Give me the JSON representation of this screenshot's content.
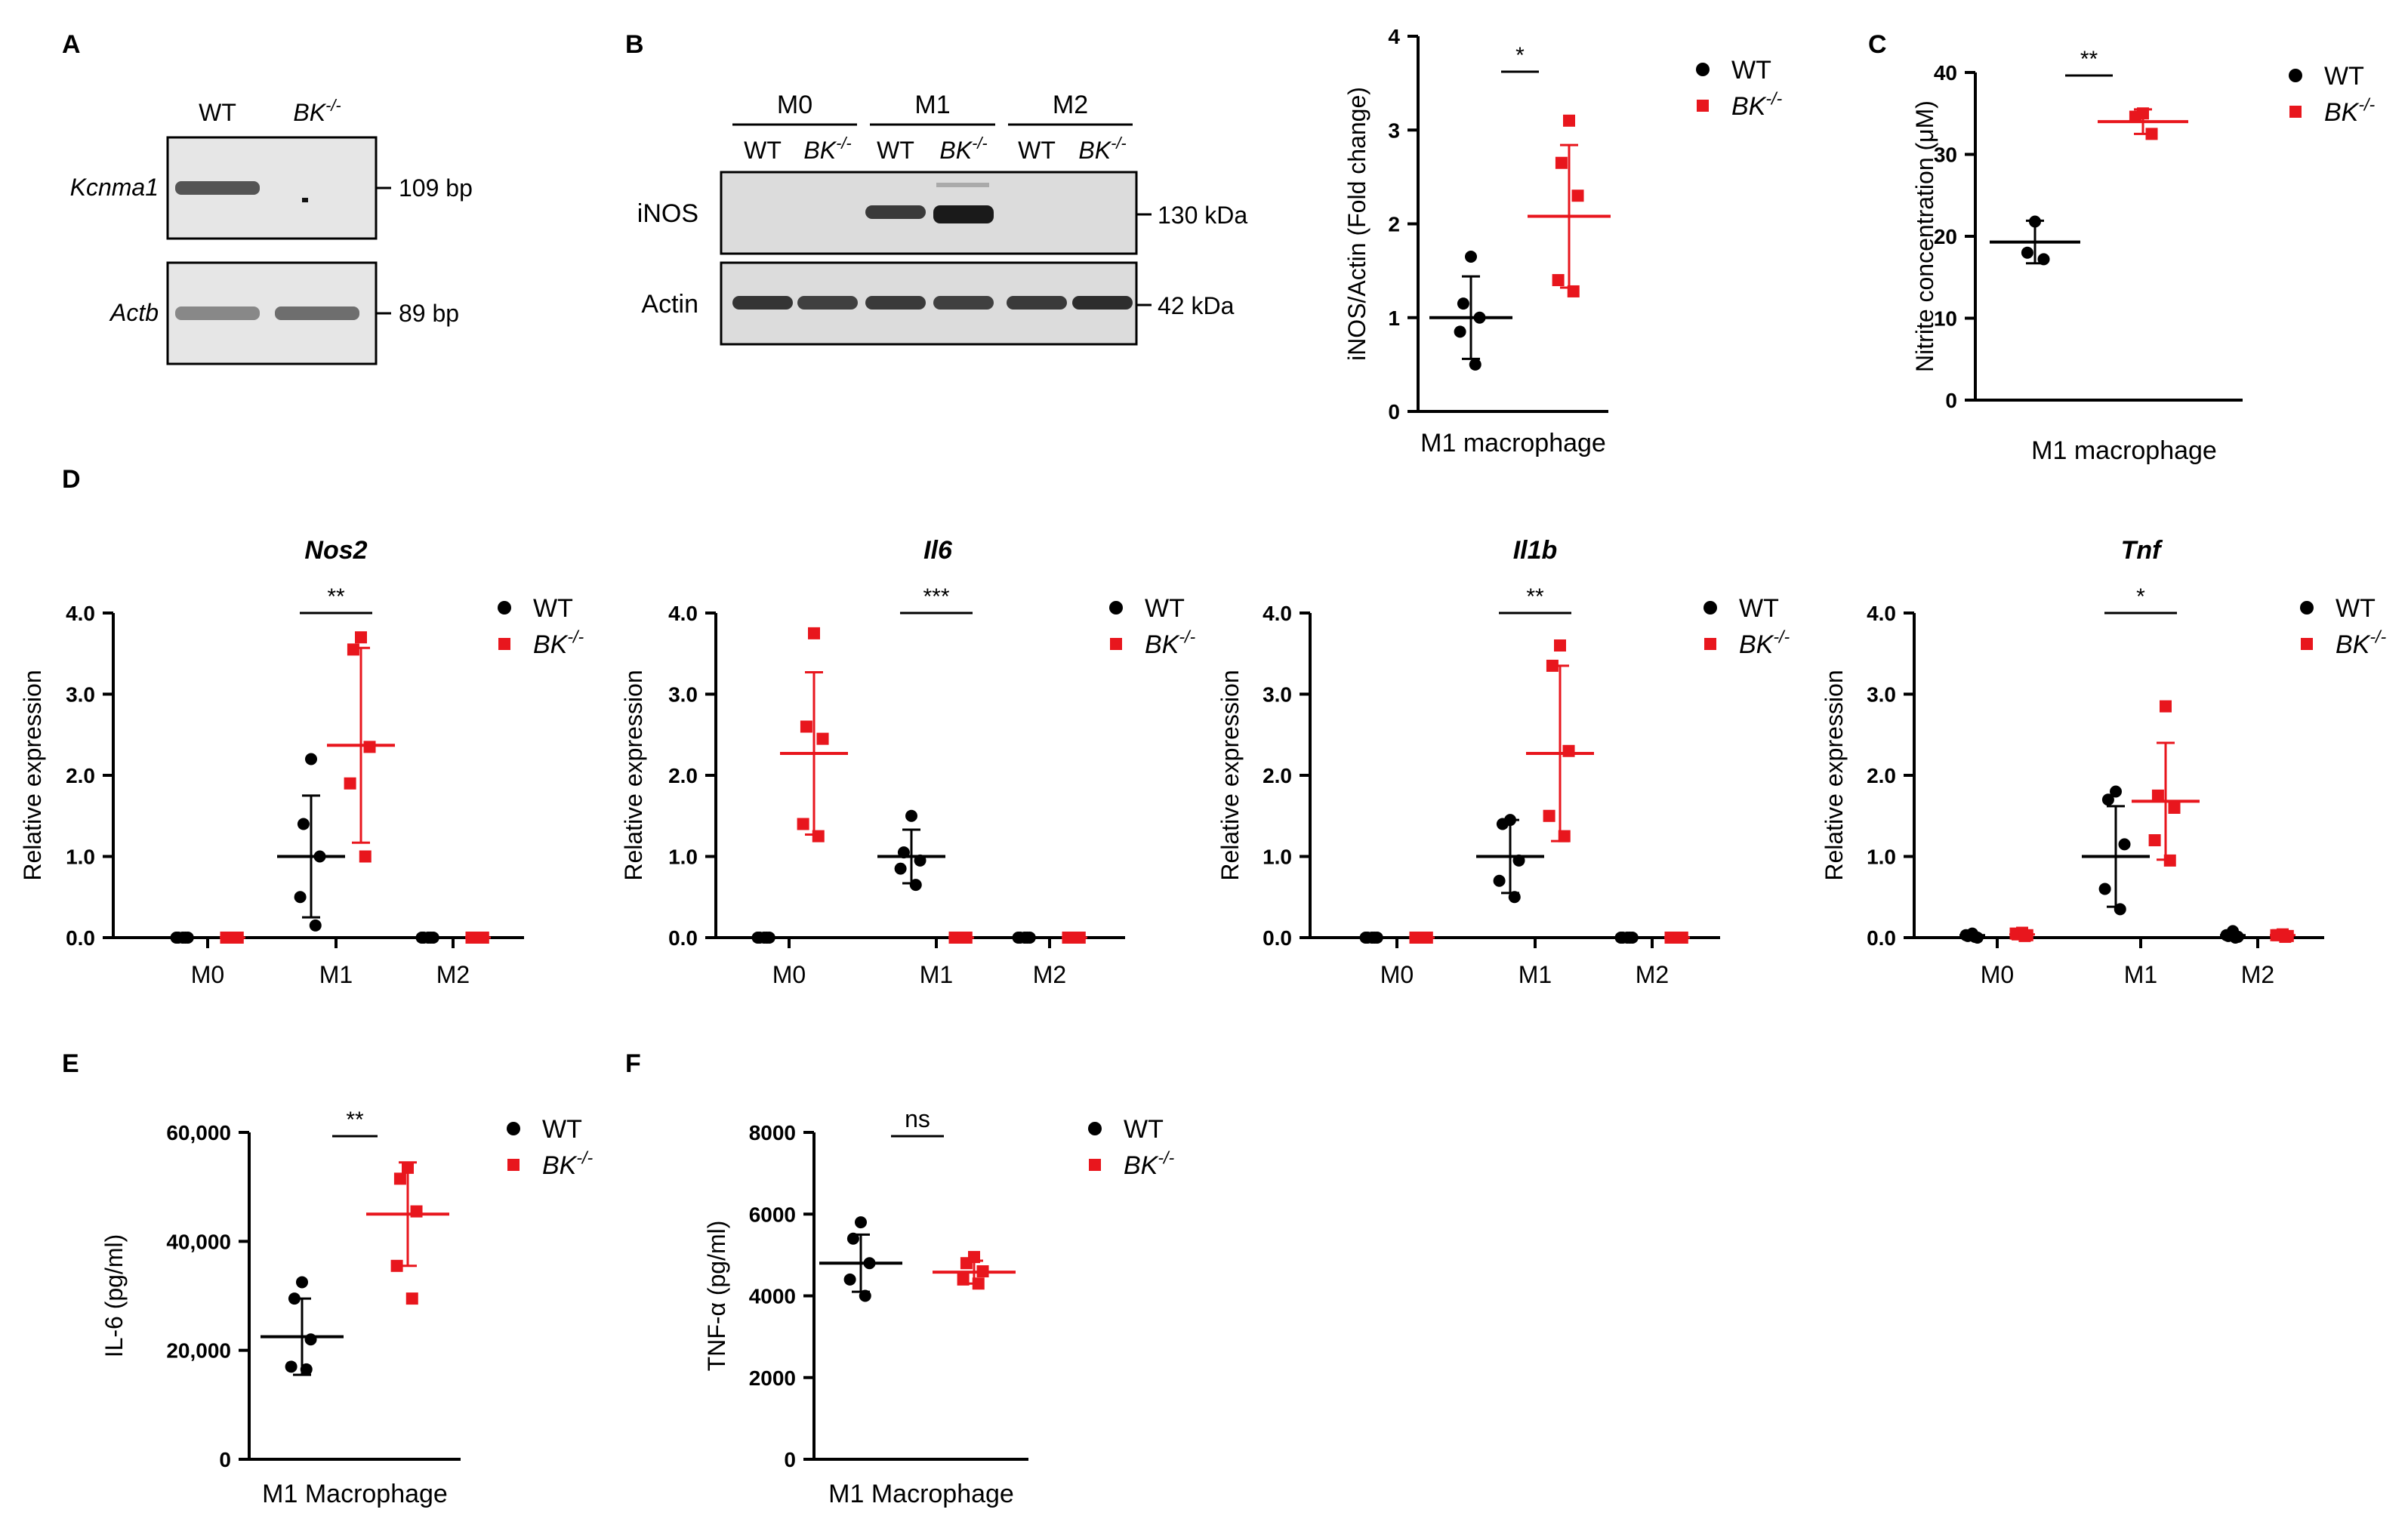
{
  "panel_labels": [
    "A",
    "B",
    "C",
    "D",
    "E",
    "F"
  ],
  "colors": {
    "wt": "#000000",
    "ko": "#e8161d",
    "gel_bg": "#e6e6e6",
    "blot_bg": "#dcdcdc"
  },
  "legend": {
    "wt": "WT",
    "ko_base": "BK",
    "ko_sup": "-/-"
  },
  "gel": {
    "lanes": [
      {
        "base": "WT",
        "sup": ""
      },
      {
        "base": "BK",
        "sup": "-/-"
      }
    ],
    "rows": [
      {
        "gene": "Kcnma1",
        "size": "109 bp",
        "bands": [
          {
            "lane": 0,
            "strength": 0.85
          }
        ]
      },
      {
        "gene": "Actb",
        "size": "89 bp",
        "bands": [
          {
            "lane": 0,
            "strength": 0.55
          },
          {
            "lane": 1,
            "strength": 0.7
          }
        ]
      }
    ]
  },
  "western": {
    "groups": [
      "M0",
      "M1",
      "M2"
    ],
    "lanes": [
      {
        "base": "WT",
        "sup": ""
      },
      {
        "base": "BK",
        "sup": "-/-"
      },
      {
        "base": "WT",
        "sup": ""
      },
      {
        "base": "BK",
        "sup": "-/-"
      },
      {
        "base": "WT",
        "sup": ""
      },
      {
        "base": "BK",
        "sup": "-/-"
      }
    ],
    "rows": [
      {
        "protein": "iNOS",
        "size": "130 kDa",
        "intensity": [
          0,
          0,
          0.75,
          1.0,
          0,
          0
        ]
      },
      {
        "protein": "Actin",
        "size": "42 kDa",
        "intensity": [
          0.8,
          0.7,
          0.75,
          0.7,
          0.75,
          0.85
        ]
      }
    ]
  },
  "chart_data": [
    {
      "id": "B-quant",
      "type": "scatter",
      "title": "",
      "xlabel": "M1 macrophage",
      "ylabel": "iNOS/Actin (Fold change)",
      "ylim": [
        0,
        4
      ],
      "yticks": [
        0,
        1,
        2,
        3,
        4
      ],
      "ytick_labels": [
        "0",
        "1",
        "2",
        "3",
        "4"
      ],
      "categories": [
        ""
      ],
      "series": [
        {
          "name": "WT",
          "groups": [
            {
              "mean": 1.0,
              "sd": 0.44,
              "points": [
                1.65,
                1.15,
                1.0,
                0.85,
                0.5
              ]
            }
          ]
        },
        {
          "name": "BK-/-",
          "groups": [
            {
              "mean": 2.08,
              "sd": 0.76,
              "points": [
                3.1,
                2.65,
                2.3,
                1.4,
                1.28
              ]
            }
          ]
        }
      ],
      "significance": [
        {
          "category": 0,
          "label": "*"
        }
      ]
    },
    {
      "id": "C",
      "type": "scatter",
      "title": "",
      "xlabel": "M1 macrophage",
      "ylabel": "Nitrite concentration (μM)",
      "ylim": [
        0,
        40
      ],
      "yticks": [
        0,
        10,
        20,
        30,
        40
      ],
      "ytick_labels": [
        "0",
        "10",
        "20",
        "30",
        "40"
      ],
      "categories": [
        ""
      ],
      "series": [
        {
          "name": "WT",
          "groups": [
            {
              "mean": 19.3,
              "sd": 2.6,
              "points": [
                21.8,
                18.0,
                17.2
              ]
            }
          ]
        },
        {
          "name": "BK-/-",
          "groups": [
            {
              "mean": 34.0,
              "sd": 1.5,
              "points": [
                35.0,
                34.6,
                32.5
              ]
            }
          ]
        }
      ],
      "significance": [
        {
          "category": 0,
          "label": "**"
        }
      ]
    },
    {
      "id": "D-Nos2",
      "type": "scatter",
      "title": "Nos2",
      "xlabel": "",
      "ylabel": "Relative expression",
      "ylim": [
        0,
        4
      ],
      "yticks": [
        0,
        1,
        2,
        3,
        4
      ],
      "ytick_labels": [
        "0.0",
        "1.0",
        "2.0",
        "3.0",
        "4.0"
      ],
      "categories": [
        "M0",
        "M1",
        "M2"
      ],
      "series": [
        {
          "name": "WT",
          "groups": [
            {
              "mean": 0.0,
              "sd": 0,
              "points": [
                0,
                0,
                0,
                0,
                0
              ]
            },
            {
              "mean": 1.0,
              "sd": 0.75,
              "points": [
                2.2,
                1.4,
                1.0,
                0.5,
                0.15
              ]
            },
            {
              "mean": 0.0,
              "sd": 0,
              "points": [
                0,
                0,
                0,
                0,
                0
              ]
            }
          ]
        },
        {
          "name": "BK-/-",
          "groups": [
            {
              "mean": 0.0,
              "sd": 0,
              "points": [
                0,
                0,
                0,
                0,
                0
              ]
            },
            {
              "mean": 2.37,
              "sd": 1.2,
              "points": [
                3.7,
                3.55,
                2.35,
                1.9,
                1.0
              ]
            },
            {
              "mean": 0.0,
              "sd": 0,
              "points": [
                0,
                0,
                0,
                0,
                0
              ]
            }
          ]
        }
      ],
      "significance": [
        {
          "category": 1,
          "label": "**"
        }
      ]
    },
    {
      "id": "D-Il6",
      "type": "scatter",
      "title": "Il6",
      "xlabel": "",
      "ylabel": "Relative expression",
      "ylim": [
        0,
        4
      ],
      "yticks": [
        0,
        1,
        2,
        3,
        4
      ],
      "ytick_labels": [
        "0.0",
        "1.0",
        "2.0",
        "3.0",
        "4.0"
      ],
      "categories": [
        "M0",
        "M1",
        "M2"
      ],
      "series": [
        {
          "name": "WT",
          "groups": [
            {
              "mean": 0.0,
              "sd": 0,
              "points": [
                0,
                0,
                0,
                0,
                0
              ]
            },
            {
              "mean": 1.0,
              "sd": 0.33,
              "points": [
                1.5,
                1.05,
                0.95,
                0.85,
                0.65
              ]
            },
            {
              "mean": 0.0,
              "sd": 0,
              "points": [
                0,
                0,
                0,
                0,
                0
              ]
            }
          ]
        },
        {
          "name": "BK-/-",
          "groups": [
            {
              "mean": 2.27,
              "sd": 1.0,
              "points": [
                3.75,
                2.6,
                2.45,
                1.4,
                1.25
              ]
            },
            {
              "mean": 0.0,
              "sd": 0,
              "points": [
                0,
                0,
                0,
                0,
                0
              ]
            },
            {
              "mean": 0.0,
              "sd": 0,
              "points": [
                0,
                0,
                0,
                0,
                0
              ]
            }
          ]
        }
      ],
      "significance": [
        {
          "category": 1,
          "label": "***"
        }
      ]
    },
    {
      "id": "D-Il1b",
      "type": "scatter",
      "title": "Il1b",
      "xlabel": "",
      "ylabel": "Relative expression",
      "ylim": [
        0,
        4
      ],
      "yticks": [
        0,
        1,
        2,
        3,
        4
      ],
      "ytick_labels": [
        "0.0",
        "1.0",
        "2.0",
        "3.0",
        "4.0"
      ],
      "categories": [
        "M0",
        "M1",
        "M2"
      ],
      "series": [
        {
          "name": "WT",
          "groups": [
            {
              "mean": 0.0,
              "sd": 0,
              "points": [
                0,
                0,
                0,
                0,
                0
              ]
            },
            {
              "mean": 1.0,
              "sd": 0.45,
              "points": [
                1.45,
                1.4,
                0.95,
                0.7,
                0.5
              ]
            },
            {
              "mean": 0.0,
              "sd": 0,
              "points": [
                0,
                0,
                0,
                0,
                0
              ]
            }
          ]
        },
        {
          "name": "BK-/-",
          "groups": [
            {
              "mean": 0.0,
              "sd": 0,
              "points": [
                0,
                0,
                0,
                0,
                0
              ]
            },
            {
              "mean": 2.27,
              "sd": 1.08,
              "points": [
                3.6,
                3.35,
                2.3,
                1.5,
                1.25
              ]
            },
            {
              "mean": 0.0,
              "sd": 0,
              "points": [
                0,
                0,
                0,
                0,
                0
              ]
            }
          ]
        }
      ],
      "significance": [
        {
          "category": 1,
          "label": "**"
        }
      ]
    },
    {
      "id": "D-Tnf",
      "type": "scatter",
      "title": "Tnf",
      "xlabel": "",
      "ylabel": "Relative expression",
      "ylim": [
        0,
        4
      ],
      "yticks": [
        0,
        1,
        2,
        3,
        4
      ],
      "ytick_labels": [
        "0.0",
        "1.0",
        "2.0",
        "3.0",
        "4.0"
      ],
      "categories": [
        "M0",
        "M1",
        "M2"
      ],
      "series": [
        {
          "name": "WT",
          "groups": [
            {
              "mean": 0.03,
              "sd": 0,
              "points": [
                0.05,
                0.02,
                0.0,
                0.03,
                0.01
              ]
            },
            {
              "mean": 1.0,
              "sd": 0.62,
              "points": [
                1.8,
                1.7,
                1.15,
                0.6,
                0.35
              ]
            },
            {
              "mean": 0.03,
              "sd": 0,
              "points": [
                0.08,
                0.02,
                0.01,
                0.03,
                0.0
              ]
            }
          ]
        },
        {
          "name": "BK-/-",
          "groups": [
            {
              "mean": 0.04,
              "sd": 0,
              "points": [
                0.06,
                0.04,
                0.03,
                0.05,
                0.02
              ]
            },
            {
              "mean": 1.68,
              "sd": 0.72,
              "points": [
                2.85,
                1.75,
                1.6,
                1.2,
                0.95
              ]
            },
            {
              "mean": 0.03,
              "sd": 0,
              "points": [
                0.04,
                0.03,
                0.02,
                0.03,
                0.01
              ]
            }
          ]
        }
      ],
      "significance": [
        {
          "category": 1,
          "label": "*"
        }
      ]
    },
    {
      "id": "E",
      "type": "scatter",
      "title": "",
      "xlabel": "M1 Macrophage",
      "ylabel": "IL-6 (pg/ml)",
      "ylim": [
        0,
        60000
      ],
      "yticks": [
        0,
        20000,
        40000,
        60000
      ],
      "ytick_labels": [
        "0",
        "20,000",
        "40,000",
        "60,000"
      ],
      "categories": [
        ""
      ],
      "series": [
        {
          "name": "WT",
          "groups": [
            {
              "mean": 22500,
              "sd": 7000,
              "points": [
                32500,
                29500,
                22000,
                17000,
                16500
              ]
            }
          ]
        },
        {
          "name": "BK-/-",
          "groups": [
            {
              "mean": 45000,
              "sd": 9500,
              "points": [
                53500,
                51500,
                45500,
                35500,
                29500
              ]
            }
          ]
        }
      ],
      "significance": [
        {
          "category": 0,
          "label": "**"
        }
      ]
    },
    {
      "id": "F",
      "type": "scatter",
      "title": "",
      "xlabel": "M1 Macrophage",
      "ylabel": "TNF-α (pg/ml)",
      "ylim": [
        0,
        8000
      ],
      "yticks": [
        0,
        2000,
        4000,
        6000,
        8000
      ],
      "ytick_labels": [
        "0",
        "2000",
        "4000",
        "6000",
        "8000"
      ],
      "categories": [
        ""
      ],
      "series": [
        {
          "name": "WT",
          "groups": [
            {
              "mean": 4800,
              "sd": 700,
              "points": [
                5800,
                5400,
                4800,
                4400,
                4000
              ]
            }
          ]
        },
        {
          "name": "BK-/-",
          "groups": [
            {
              "mean": 4580,
              "sd": 280,
              "points": [
                4950,
                4800,
                4600,
                4400,
                4300
              ]
            }
          ]
        }
      ],
      "significance": [
        {
          "category": 0,
          "label": "ns"
        }
      ]
    }
  ]
}
